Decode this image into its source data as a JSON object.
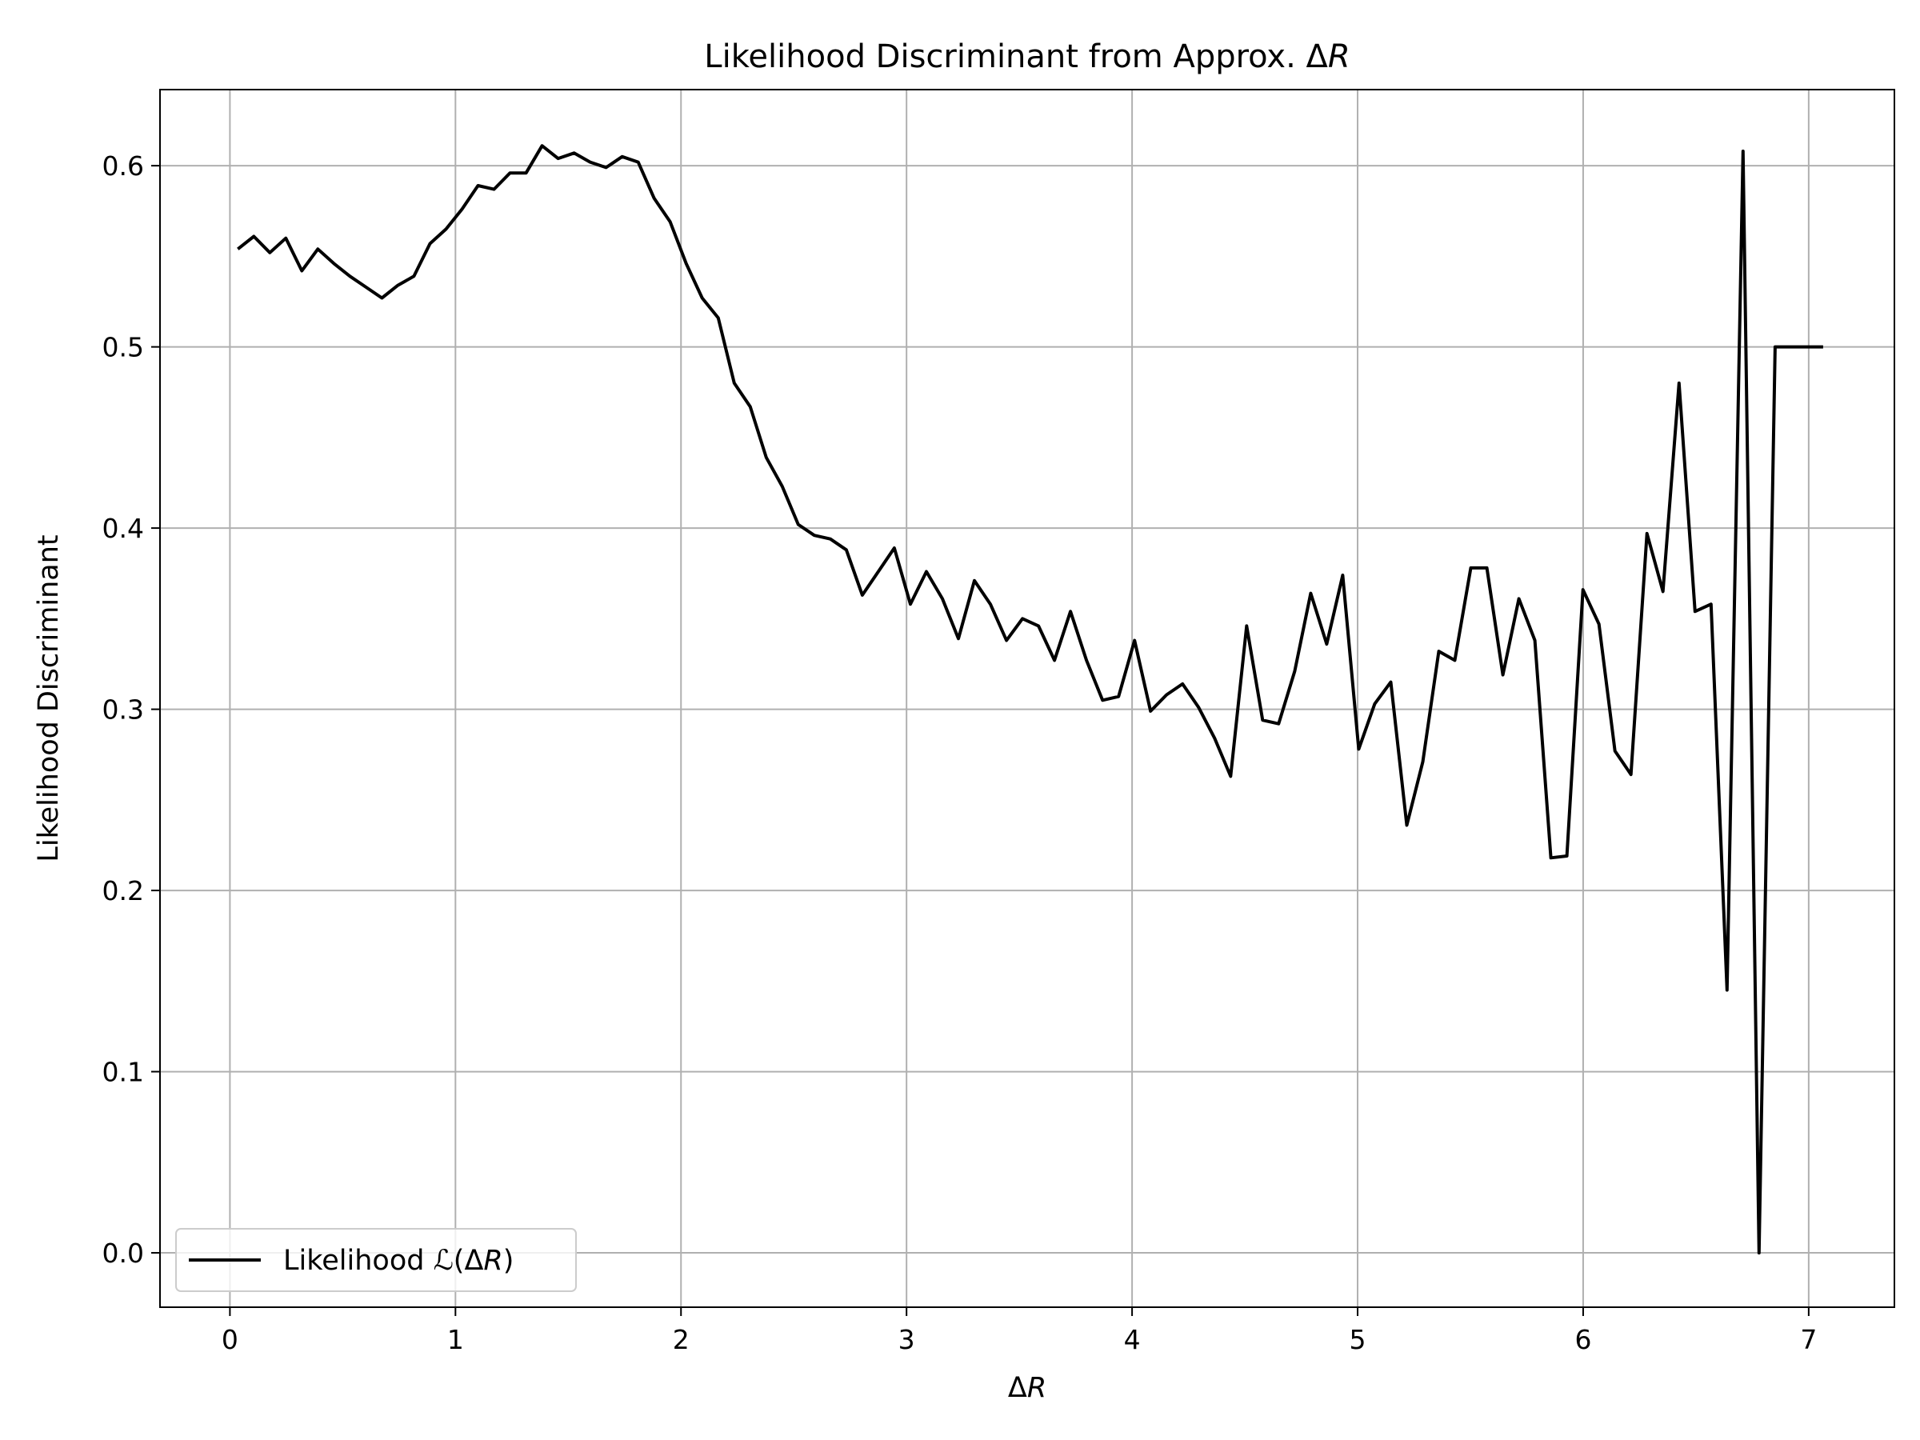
{
  "chart_data": {
    "type": "line",
    "title": {
      "prefix": "Likelihood Discriminant from Approx. Δ",
      "var": "R"
    },
    "xlabel": {
      "prefix": "Δ",
      "var": "R"
    },
    "ylabel": "Likelihood Discriminant",
    "xlim": [
      -0.31,
      7.38
    ],
    "ylim": [
      -0.03,
      0.642
    ],
    "xticks": [
      0,
      1,
      2,
      3,
      4,
      5,
      6,
      7
    ],
    "xtick_labels": [
      "0",
      "1",
      "2",
      "3",
      "4",
      "5",
      "6",
      "7"
    ],
    "yticks": [
      0.0,
      0.1,
      0.2,
      0.3,
      0.4,
      0.5,
      0.6
    ],
    "ytick_labels": [
      "0.0",
      "0.1",
      "0.2",
      "0.3",
      "0.4",
      "0.5",
      "0.6"
    ],
    "grid": true,
    "legend": {
      "position": "lower-left"
    },
    "colors": {
      "line": "#000000",
      "grid": "#b0b0b0",
      "axes": "#000000"
    },
    "series": [
      {
        "name": "Likelihood ℒ(ΔR)",
        "legend_parts": {
          "prefix": "Likelihood ",
          "script": "ℒ",
          "open": "(Δ",
          "var": "R",
          "close": ")"
        },
        "x": [
          0.035,
          0.106,
          0.177,
          0.248,
          0.319,
          0.39,
          0.461,
          0.532,
          0.603,
          0.674,
          0.745,
          0.816,
          0.887,
          0.958,
          1.029,
          1.1,
          1.171,
          1.242,
          1.313,
          1.384,
          1.455,
          1.526,
          1.597,
          1.668,
          1.739,
          1.81,
          1.881,
          1.952,
          2.023,
          2.094,
          2.165,
          2.236,
          2.307,
          2.378,
          2.449,
          2.52,
          2.591,
          2.662,
          2.733,
          2.804,
          2.875,
          2.946,
          3.017,
          3.088,
          3.159,
          3.23,
          3.301,
          3.372,
          3.443,
          3.514,
          3.585,
          3.656,
          3.727,
          3.798,
          3.869,
          3.94,
          4.011,
          4.082,
          4.153,
          4.224,
          4.295,
          4.366,
          4.437,
          4.508,
          4.579,
          4.65,
          4.721,
          4.792,
          4.863,
          4.934,
          5.005,
          5.076,
          5.147,
          5.218,
          5.289,
          5.36,
          5.431,
          5.502,
          5.573,
          5.644,
          5.715,
          5.786,
          5.857,
          5.928,
          5.999,
          6.07,
          6.141,
          6.212,
          6.283,
          6.354,
          6.425,
          6.496,
          6.567,
          6.638,
          6.709,
          6.78,
          6.851,
          6.922,
          6.993,
          7.064
        ],
        "y": [
          0.554,
          0.561,
          0.552,
          0.56,
          0.542,
          0.554,
          0.546,
          0.539,
          0.533,
          0.527,
          0.534,
          0.539,
          0.557,
          0.565,
          0.576,
          0.589,
          0.587,
          0.596,
          0.596,
          0.611,
          0.604,
          0.607,
          0.602,
          0.599,
          0.605,
          0.602,
          0.582,
          0.569,
          0.546,
          0.527,
          0.516,
          0.48,
          0.467,
          0.439,
          0.423,
          0.402,
          0.396,
          0.394,
          0.388,
          0.363,
          0.376,
          0.389,
          0.358,
          0.376,
          0.361,
          0.339,
          0.371,
          0.358,
          0.338,
          0.35,
          0.346,
          0.327,
          0.354,
          0.327,
          0.305,
          0.307,
          0.338,
          0.299,
          0.308,
          0.314,
          0.301,
          0.284,
          0.263,
          0.346,
          0.294,
          0.292,
          0.321,
          0.364,
          0.336,
          0.374,
          0.278,
          0.303,
          0.315,
          0.236,
          0.271,
          0.332,
          0.327,
          0.378,
          0.378,
          0.319,
          0.361,
          0.338,
          0.218,
          0.219,
          0.366,
          0.347,
          0.277,
          0.264,
          0.397,
          0.365,
          0.48,
          0.354,
          0.358,
          0.145,
          0.608,
          0.0,
          0.5,
          0.5,
          0.5,
          0.5
        ]
      }
    ]
  }
}
